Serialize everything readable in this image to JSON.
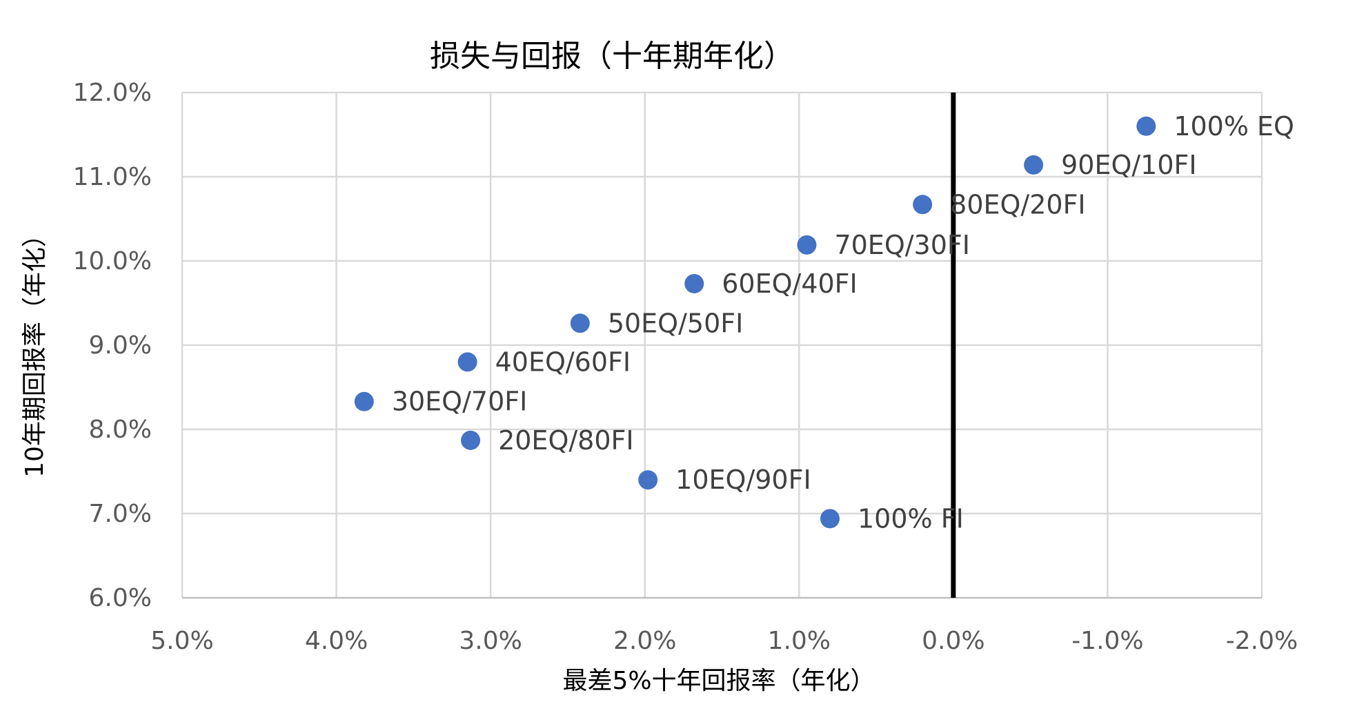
{
  "chart_data": {
    "type": "scatter",
    "title": "损失与回报（十年期年化）",
    "xlabel": "最差5%十年回报率（年化）",
    "ylabel": "10年期回报率（年化）",
    "x_reversed": true,
    "xlim": [
      5.0,
      -2.0
    ],
    "ylim": [
      6.0,
      12.0
    ],
    "x_ticks": [
      5.0,
      4.0,
      3.0,
      2.0,
      1.0,
      0.0,
      -1.0,
      -2.0
    ],
    "x_tick_labels": [
      "5.0%",
      "4.0%",
      "3.0%",
      "2.0%",
      "1.0%",
      "0.0%",
      "-1.0%",
      "-2.0%"
    ],
    "y_ticks": [
      6.0,
      7.0,
      8.0,
      9.0,
      10.0,
      11.0,
      12.0
    ],
    "y_tick_labels": [
      "6.0%",
      "7.0%",
      "8.0%",
      "9.0%",
      "10.0%",
      "11.0%",
      "12.0%"
    ],
    "grid": true,
    "reference_line_x": 0.0,
    "marker_color": "#4472C4",
    "points": [
      {
        "label": "100% EQ",
        "x": -1.25,
        "y": 11.6
      },
      {
        "label": "90EQ/10FI",
        "x": -0.52,
        "y": 11.14
      },
      {
        "label": "80EQ/20FI",
        "x": 0.2,
        "y": 10.67
      },
      {
        "label": "70EQ/30FI",
        "x": 0.95,
        "y": 10.19
      },
      {
        "label": "60EQ/40FI",
        "x": 1.68,
        "y": 9.73
      },
      {
        "label": "50EQ/50FI",
        "x": 2.42,
        "y": 9.26
      },
      {
        "label": "40EQ/60FI",
        "x": 3.15,
        "y": 8.8
      },
      {
        "label": "30EQ/70FI",
        "x": 3.82,
        "y": 8.33
      },
      {
        "label": "20EQ/80FI",
        "x": 3.13,
        "y": 7.87
      },
      {
        "label": "10EQ/90FI",
        "x": 1.98,
        "y": 7.4
      },
      {
        "label": "100% FI",
        "x": 0.8,
        "y": 6.94
      }
    ]
  }
}
